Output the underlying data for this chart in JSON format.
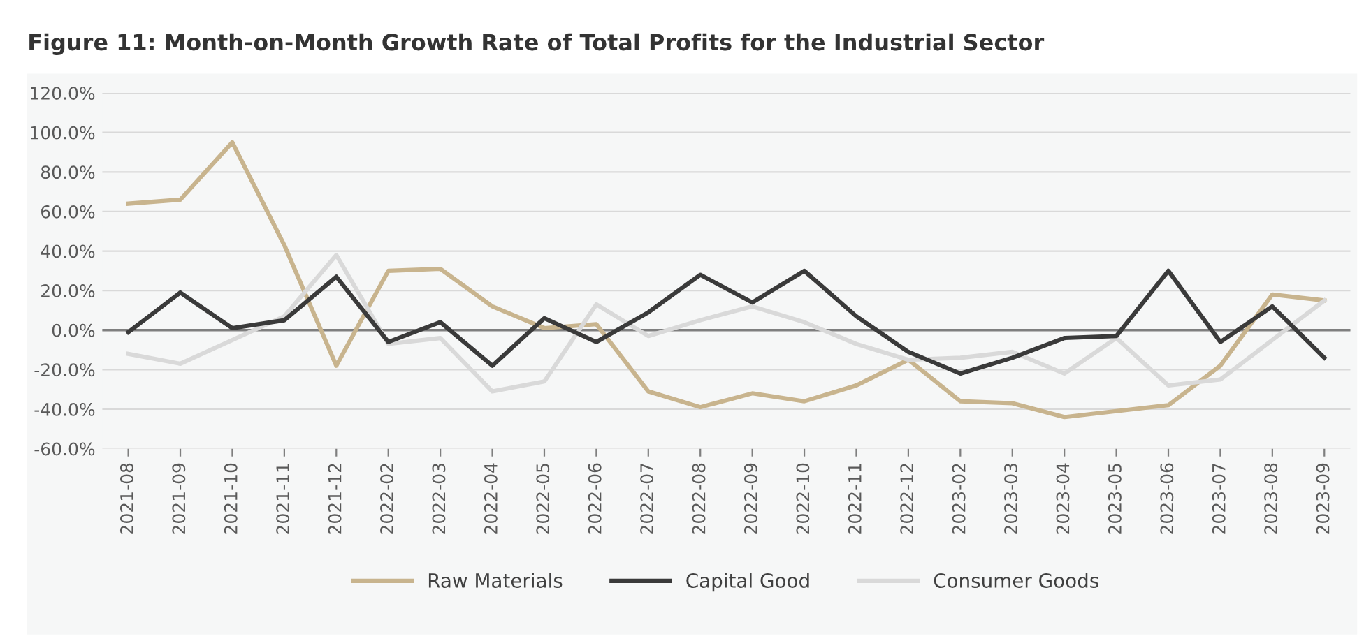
{
  "chart_data": {
    "type": "line",
    "title": "Figure 11: Month-on-Month Growth Rate of Total Profits for the Industrial Sector",
    "categories": [
      "2021-08",
      "2021-09",
      "2021-10",
      "2021-11",
      "2021-12",
      "2022-02",
      "2022-03",
      "2022-04",
      "2022-05",
      "2022-06",
      "2022-07",
      "2022-08",
      "2022-09",
      "2022-10",
      "2022-11",
      "2022-12",
      "2023-02",
      "2023-03",
      "2023-04",
      "2023-05",
      "2023-06",
      "2023-07",
      "2023-08",
      "2023-09"
    ],
    "series": [
      {
        "name": "Raw Materials",
        "color": "#c8b48e",
        "values": [
          64,
          66,
          95,
          43,
          -18,
          30,
          31,
          12,
          1,
          3,
          -31,
          -39,
          -32,
          -36,
          -28,
          -15,
          -36,
          -37,
          -44,
          -41,
          -38,
          -18,
          18,
          15
        ]
      },
      {
        "name": "Capital Good",
        "color": "#3a3a3a",
        "values": [
          -1,
          19,
          1,
          5,
          27,
          -6,
          4,
          -18,
          6,
          -6,
          9,
          28,
          14,
          30,
          7,
          -11,
          -22,
          -14,
          -4,
          -3,
          30,
          -6,
          12,
          -14
        ]
      },
      {
        "name": "Consumer Goods",
        "color": "#d9d9d9",
        "values": [
          -12,
          -17,
          -5,
          7,
          38,
          -7,
          -4,
          -31,
          -26,
          13,
          -3,
          5,
          12,
          4,
          -7,
          -15,
          -14,
          -11,
          -22,
          -4,
          -28,
          -25,
          -5,
          15
        ]
      }
    ],
    "ylim": [
      -60,
      120
    ],
    "yticks": [
      {
        "value": -60,
        "label": "-60.0%"
      },
      {
        "value": -40,
        "label": "-40.0%"
      },
      {
        "value": -20,
        "label": "-20.0%"
      },
      {
        "value": 0,
        "label": "0.0%"
      },
      {
        "value": 20,
        "label": "20.0%"
      },
      {
        "value": 40,
        "label": "40.0%"
      },
      {
        "value": 60,
        "label": "60.0%"
      },
      {
        "value": 80,
        "label": "80.0%"
      },
      {
        "value": 100,
        "label": "100.0%"
      },
      {
        "value": 120,
        "label": "120.0%"
      }
    ],
    "grid": "y",
    "legend": "bottom",
    "marker": "none",
    "line_style": "solid"
  }
}
